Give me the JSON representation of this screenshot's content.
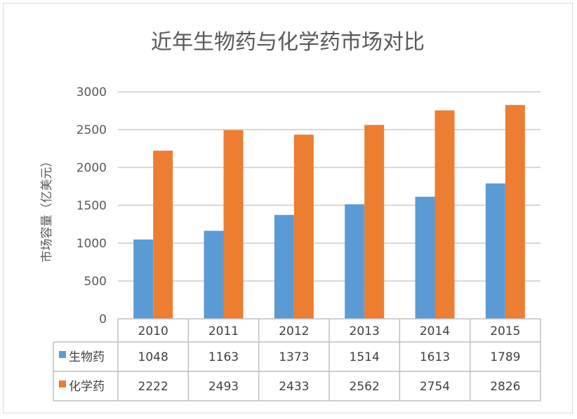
{
  "chart_data": {
    "type": "bar",
    "title": "近年生物药与化学药市场对比",
    "ylabel": "市场容量（亿美元）",
    "xlabel": "",
    "categories": [
      "2010",
      "2011",
      "2012",
      "2013",
      "2014",
      "2015"
    ],
    "series": [
      {
        "name": "生物药",
        "color": "#5b9bd5",
        "values": [
          1048,
          1163,
          1373,
          1514,
          1613,
          1789
        ]
      },
      {
        "name": "化学药",
        "color": "#ed7d31",
        "values": [
          2222,
          2493,
          2433,
          2562,
          2754,
          2826
        ]
      }
    ],
    "ylim": [
      0,
      3000
    ],
    "yticks": [
      "0",
      "500",
      "1000",
      "1500",
      "2000",
      "2500",
      "3000"
    ],
    "grid": true,
    "legend": "data-table"
  }
}
